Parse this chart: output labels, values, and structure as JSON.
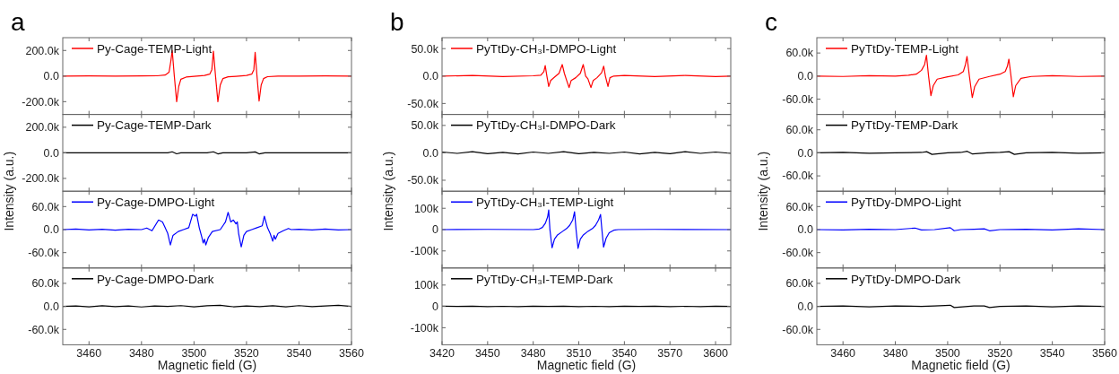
{
  "chart_data": [
    {
      "type": "line",
      "title": "a",
      "xlim": [
        3450,
        3560
      ],
      "xticks": [
        3460,
        3480,
        3500,
        3520,
        3540,
        3560
      ],
      "ylim": [
        -300000,
        300000
      ],
      "yticks": [
        {
          "value": -200000,
          "label": "-200.0k"
        },
        {
          "value": 0,
          "label": "0.0"
        },
        {
          "value": 200000,
          "label": "200.0k"
        }
      ],
      "tick_labels": "y",
      "legend": "top left",
      "series": [
        {
          "name": "Py-Cage-TEMP-Light",
          "color": "#ff0000",
          "x": [
            3450,
            3460,
            3470,
            3480,
            3486,
            3489,
            3490.5,
            3491.2,
            3491.7,
            3492.5,
            3493.4,
            3494.2,
            3495,
            3497,
            3500,
            3504,
            3506,
            3506.8,
            3507.4,
            3508.2,
            3509.1,
            3510,
            3511,
            3513,
            3516,
            3520,
            3522,
            3522.8,
            3523.3,
            3524,
            3524.8,
            3525.6,
            3526.5,
            3528,
            3532,
            3540,
            3550,
            3560
          ],
          "values": [
            0,
            1000,
            0,
            1000,
            2000,
            8000,
            30000,
            120000,
            200000,
            0,
            -200000,
            -80000,
            -25000,
            -8000,
            -2000,
            5000,
            15000,
            50000,
            195000,
            0,
            -200000,
            -70000,
            -20000,
            -6000,
            -2000,
            5000,
            15000,
            50000,
            185000,
            0,
            -195000,
            -70000,
            -20000,
            -5000,
            -1000,
            0,
            1000,
            0
          ]
        }
      ]
    },
    {
      "type": "line",
      "xlim": [
        3450,
        3560
      ],
      "xticks": [
        3460,
        3480,
        3500,
        3520,
        3540,
        3560
      ],
      "ylim": [
        -300000,
        300000
      ],
      "yticks": [
        {
          "value": -200000,
          "label": "-200.0k"
        },
        {
          "value": 0,
          "label": "0.0"
        },
        {
          "value": 200000,
          "label": "200.0k"
        }
      ],
      "tick_labels": "y",
      "legend": "top left",
      "ylabel": "Intensity (a.u.)",
      "series": [
        {
          "name": "Py-Cage-TEMP-Dark",
          "color": "#000000",
          "x": [
            3450,
            3470,
            3490,
            3491.7,
            3493.4,
            3495,
            3505,
            3507.4,
            3509.1,
            3511,
            3520,
            3523.3,
            3524.8,
            3527,
            3540,
            3560
          ],
          "values": [
            0,
            0,
            0,
            8000,
            -8000,
            0,
            0,
            8000,
            -8000,
            0,
            0,
            7000,
            -8000,
            0,
            0,
            0
          ]
        }
      ]
    },
    {
      "type": "line",
      "xlim": [
        3450,
        3560
      ],
      "xticks": [
        3460,
        3480,
        3500,
        3520,
        3540,
        3560
      ],
      "ylim": [
        -100000,
        100000
      ],
      "yticks": [
        {
          "value": -60000,
          "label": "-60.0k"
        },
        {
          "value": 0,
          "label": "0.0"
        },
        {
          "value": 60000,
          "label": "60.0k"
        }
      ],
      "tick_labels": "y",
      "legend": "top left",
      "series": [
        {
          "name": "Py-Cage-DMPO-Light",
          "color": "#0000ff",
          "x": [
            3450,
            3455,
            3460,
            3465,
            3470,
            3475,
            3480,
            3482,
            3484,
            3486.5,
            3488,
            3489,
            3490,
            3491,
            3492,
            3494,
            3496,
            3498,
            3499.5,
            3500.5,
            3501,
            3502,
            3503,
            3503.5,
            3504,
            3504.5,
            3505.5,
            3507,
            3510,
            3511,
            3512,
            3513,
            3514,
            3515,
            3516,
            3516.5,
            3517,
            3518,
            3519,
            3520,
            3522,
            3524,
            3526,
            3526.8,
            3528,
            3529,
            3530,
            3530.5,
            3531,
            3532,
            3534,
            3536,
            3537,
            3540,
            3545,
            3550,
            3555,
            3560
          ],
          "values": [
            0,
            1500,
            -1000,
            1000,
            -1500,
            1000,
            0,
            4000,
            -3000,
            25000,
            20000,
            5000,
            -10000,
            -40000,
            -15000,
            -5000,
            0,
            5000,
            40000,
            35000,
            40000,
            5000,
            -20000,
            -35000,
            -25000,
            -40000,
            -20000,
            -5000,
            0,
            10000,
            20000,
            45000,
            20000,
            25000,
            15000,
            20000,
            -10000,
            -45000,
            -15000,
            -5000,
            0,
            5000,
            10000,
            35000,
            5000,
            -10000,
            -30000,
            -15000,
            -25000,
            -10000,
            -3000,
            3000,
            0,
            1000,
            -1000,
            1500,
            -1000,
            0
          ]
        }
      ]
    },
    {
      "type": "line",
      "xlabel": "Magnetic field (G)",
      "xlim": [
        3450,
        3560
      ],
      "xticks": [
        3460,
        3480,
        3500,
        3520,
        3540,
        3560
      ],
      "ylim": [
        -100000,
        100000
      ],
      "yticks": [
        {
          "value": -60000,
          "label": "-60.0k"
        },
        {
          "value": 0,
          "label": "0.0"
        },
        {
          "value": 60000,
          "label": "60.0k"
        }
      ],
      "legend": "top left",
      "series": [
        {
          "name": "Py-Cage-DMPO-Dark",
          "color": "#000000",
          "x": [
            3450,
            3455,
            3460,
            3465,
            3470,
            3475,
            3480,
            3485,
            3490,
            3495,
            3500,
            3505,
            3510,
            3515,
            3520,
            3525,
            3530,
            3535,
            3540,
            3545,
            3550,
            3555,
            3560
          ],
          "values": [
            0,
            1000,
            -1000,
            1500,
            -500,
            1000,
            -1500,
            1000,
            0,
            2000,
            -1000,
            1500,
            3000,
            -1000,
            1000,
            -500,
            1500,
            -1000,
            2000,
            -500,
            1000,
            3000,
            0
          ]
        }
      ]
    },
    {
      "type": "line",
      "title": "b",
      "xlim": [
        3420,
        3610
      ],
      "xticks": [
        3420,
        3450,
        3480,
        3510,
        3540,
        3570,
        3600
      ],
      "ylim": [
        -70000,
        70000
      ],
      "yticks": [
        {
          "value": -50000,
          "label": "-50.0k"
        },
        {
          "value": 0,
          "label": "0.0"
        },
        {
          "value": 50000,
          "label": "50.0k"
        }
      ],
      "tick_labels": "y",
      "legend": "top left",
      "series": [
        {
          "name": "PyTtDy-CH₃I-DMPO-Light",
          "color": "#ff0000",
          "x": [
            3420,
            3440,
            3460,
            3480,
            3485,
            3487,
            3487.9,
            3489,
            3490.2,
            3491.5,
            3494,
            3497,
            3499.1,
            3500.5,
            3502,
            3503.6,
            3505,
            3508,
            3511,
            3512.9,
            3514.5,
            3516,
            3518,
            3519.5,
            3522,
            3525,
            3526.4,
            3527.5,
            3529.2,
            3530.5,
            3533,
            3540,
            3560,
            3580,
            3600,
            3610
          ],
          "values": [
            0,
            1000,
            -1000,
            500,
            1500,
            8000,
            19000,
            0,
            -19000,
            -8000,
            -2000,
            5000,
            21000,
            5000,
            -8000,
            -21000,
            -8000,
            -3000,
            5000,
            21000,
            0,
            -5000,
            -21000,
            -8000,
            -3000,
            6000,
            18000,
            0,
            -19000,
            -3000,
            0,
            1000,
            -1000,
            1000,
            -1000,
            0
          ]
        }
      ]
    },
    {
      "type": "line",
      "xlim": [
        3420,
        3610
      ],
      "xticks": [
        3420,
        3450,
        3480,
        3510,
        3540,
        3570,
        3600
      ],
      "ylim": [
        -70000,
        70000
      ],
      "yticks": [
        {
          "value": -50000,
          "label": "-50.0k"
        },
        {
          "value": 0,
          "label": "0.0"
        },
        {
          "value": 50000,
          "label": "50.0k"
        }
      ],
      "tick_labels": "y",
      "legend": "top left",
      "ylabel": "Intensity (a.u.)",
      "series": [
        {
          "name": "PyTtDy-CH₃I-DMPO-Dark",
          "color": "#000000",
          "x": [
            3420,
            3430,
            3440,
            3450,
            3460,
            3470,
            3480,
            3490,
            3500,
            3510,
            3520,
            3530,
            3540,
            3550,
            3560,
            3570,
            3580,
            3590,
            3600,
            3610
          ],
          "values": [
            1500,
            -1000,
            2000,
            -1500,
            1000,
            -2000,
            1500,
            -1000,
            2000,
            -1500,
            1000,
            -1000,
            1500,
            -2000,
            1000,
            -1500,
            2000,
            -1000,
            1500,
            -1000
          ]
        }
      ]
    },
    {
      "type": "line",
      "xlim": [
        3420,
        3610
      ],
      "xticks": [
        3420,
        3450,
        3480,
        3510,
        3540,
        3570,
        3600
      ],
      "ylim": [
        -180000,
        180000
      ],
      "yticks": [
        {
          "value": -100000,
          "label": "-100k"
        },
        0,
        {
          "value": 100000,
          "label": "100k"
        }
      ],
      "tick_labels": "y",
      "legend": "top left",
      "series": [
        {
          "name": "PyTtDy-CH₃I-TEMP-Light",
          "color": "#0000ff",
          "x": [
            3420,
            3450,
            3480,
            3484,
            3486,
            3488,
            3489.5,
            3490.2,
            3491,
            3492.4,
            3494,
            3496,
            3499,
            3502,
            3504,
            3506,
            3507.2,
            3508.2,
            3509.5,
            3511,
            3513,
            3516,
            3519,
            3521,
            3523,
            3524.3,
            3525.2,
            3526.3,
            3528,
            3530,
            3533,
            3536,
            3560,
            3610
          ],
          "values": [
            0,
            1000,
            0,
            3000,
            10000,
            30000,
            60000,
            92000,
            0,
            -85000,
            -45000,
            -25000,
            -10000,
            5000,
            20000,
            45000,
            84000,
            0,
            -88000,
            -45000,
            -25000,
            -8000,
            5000,
            20000,
            45000,
            71000,
            0,
            -82000,
            -40000,
            -15000,
            -3000,
            0,
            1000,
            0
          ]
        }
      ]
    },
    {
      "type": "line",
      "xlabel": "Magnetic field (G)",
      "xlim": [
        3420,
        3610
      ],
      "xticks": [
        3420,
        3450,
        3480,
        3510,
        3540,
        3570,
        3600
      ],
      "ylim": [
        -180000,
        180000
      ],
      "yticks": [
        {
          "value": -100000,
          "label": "-100k"
        },
        0,
        {
          "value": 100000,
          "label": "100k"
        }
      ],
      "legend": "top left",
      "series": [
        {
          "name": "PyTtDy-CH₃I-TEMP-Dark",
          "color": "#000000",
          "x": [
            3420,
            3430,
            3440,
            3450,
            3460,
            3470,
            3480,
            3490,
            3500,
            3510,
            3520,
            3530,
            3540,
            3550,
            3560,
            3570,
            3580,
            3590,
            3600,
            3610
          ],
          "values": [
            1000,
            -500,
            800,
            -1000,
            500,
            -800,
            1000,
            -500,
            800,
            -1000,
            500,
            -800,
            1000,
            -500,
            800,
            -1000,
            500,
            -800,
            1000,
            0
          ]
        }
      ]
    },
    {
      "type": "line",
      "title": "c",
      "xlim": [
        3450,
        3560
      ],
      "xticks": [
        3460,
        3480,
        3500,
        3520,
        3540,
        3560
      ],
      "ylim": [
        -100000,
        100000
      ],
      "yticks": [
        {
          "value": -60000,
          "label": "-60.0k"
        },
        {
          "value": 0,
          "label": "0.0"
        },
        {
          "value": 60000,
          "label": "60.0k"
        }
      ],
      "tick_labels": "y",
      "legend": "top left",
      "series": [
        {
          "name": "PyTtDy-TEMP-Light",
          "color": "#ff0000",
          "x": [
            3450,
            3460,
            3470,
            3480,
            3485,
            3488,
            3490,
            3491.2,
            3491.9,
            3492.7,
            3493.6,
            3494.5,
            3496,
            3500,
            3504,
            3506,
            3506.8,
            3507.4,
            3508.3,
            3509.4,
            3510.3,
            3512,
            3516,
            3520,
            3522,
            3522.8,
            3523.4,
            3524.2,
            3525.1,
            3526,
            3528,
            3532,
            3540,
            3550,
            3560
          ],
          "values": [
            0,
            -1000,
            1000,
            0,
            2000,
            5000,
            15000,
            30000,
            54000,
            0,
            -51000,
            -25000,
            -8000,
            -2000,
            3000,
            12000,
            30000,
            51000,
            0,
            -56000,
            -28000,
            -8000,
            -1000,
            5000,
            12000,
            25000,
            44000,
            0,
            -54000,
            -25000,
            -6000,
            -1000,
            1000,
            -1000,
            0
          ]
        }
      ]
    },
    {
      "type": "line",
      "xlim": [
        3450,
        3560
      ],
      "xticks": [
        3460,
        3480,
        3500,
        3520,
        3540,
        3560
      ],
      "ylim": [
        -100000,
        100000
      ],
      "yticks": [
        {
          "value": -60000,
          "label": "-60.0k"
        },
        {
          "value": 0,
          "label": "0.0"
        },
        {
          "value": 60000,
          "label": "60.0k"
        }
      ],
      "tick_labels": "y",
      "legend": "top left",
      "ylabel": "Intensity (a.u.)",
      "series": [
        {
          "name": "PyTtDy-TEMP-Dark",
          "color": "#000000",
          "x": [
            3450,
            3460,
            3470,
            3480,
            3490,
            3492,
            3494,
            3500,
            3505,
            3507.5,
            3509.5,
            3515,
            3520,
            3523.5,
            3525.5,
            3530,
            3540,
            3550,
            3560
          ],
          "values": [
            0,
            1000,
            -1000,
            0,
            1000,
            3000,
            -4000,
            0,
            1000,
            4000,
            -3000,
            0,
            1000,
            3000,
            -4000,
            0,
            1000,
            -1000,
            0
          ]
        }
      ]
    },
    {
      "type": "line",
      "xlim": [
        3450,
        3560
      ],
      "xticks": [
        3460,
        3480,
        3500,
        3520,
        3540,
        3560
      ],
      "ylim": [
        -100000,
        100000
      ],
      "yticks": [
        {
          "value": -60000,
          "label": "-60.0k"
        },
        {
          "value": 0,
          "label": "0.0"
        },
        {
          "value": 60000,
          "label": "60.0k"
        }
      ],
      "tick_labels": "y",
      "legend": "top left",
      "series": [
        {
          "name": "PyTtDy-DMPO-Light",
          "color": "#0000ff",
          "x": [
            3450,
            3460,
            3470,
            3480,
            3487.5,
            3490,
            3495,
            3501,
            3502.5,
            3505,
            3510,
            3514,
            3516,
            3520,
            3530,
            3540,
            3550,
            3560
          ],
          "values": [
            0,
            -1000,
            1000,
            0,
            4000,
            -1000,
            0,
            5000,
            -3000,
            0,
            1000,
            2000,
            -3000,
            0,
            1000,
            -1000,
            2000,
            0
          ]
        }
      ]
    },
    {
      "type": "line",
      "xlabel": "Magnetic field (G)",
      "xlim": [
        3450,
        3560
      ],
      "xticks": [
        3460,
        3480,
        3500,
        3520,
        3540,
        3560
      ],
      "ylim": [
        -100000,
        100000
      ],
      "yticks": [
        {
          "value": -60000,
          "label": "-60.0k"
        },
        {
          "value": 0,
          "label": "0.0"
        },
        {
          "value": 60000,
          "label": "60.0k"
        }
      ],
      "legend": "top left",
      "series": [
        {
          "name": "PyTtDy-DMPO-Dark",
          "color": "#000000",
          "x": [
            3450,
            3460,
            3470,
            3480,
            3490,
            3495,
            3501,
            3502.5,
            3510,
            3514,
            3516,
            3520,
            3530,
            3540,
            3550,
            3560
          ],
          "values": [
            0,
            1000,
            -1000,
            1000,
            0,
            1000,
            3000,
            -3000,
            1000,
            1000,
            -3000,
            0,
            1000,
            -1000,
            1000,
            0
          ]
        }
      ]
    }
  ]
}
